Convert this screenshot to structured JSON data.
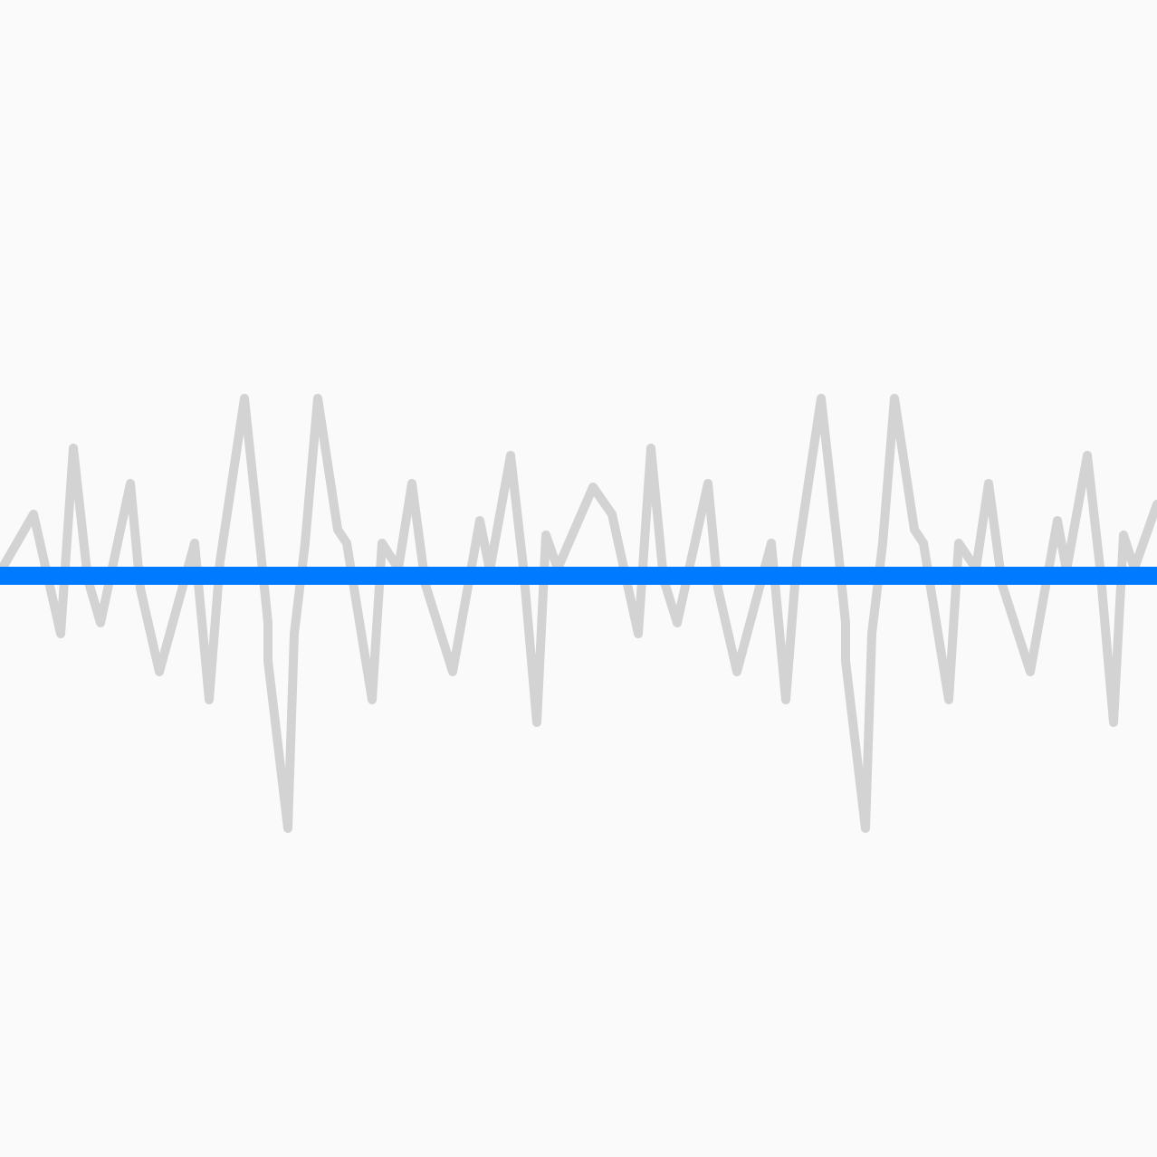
{
  "colors": {
    "background": "#fafafa",
    "waveform": "#d3d3d3",
    "playhead": "#007aff"
  },
  "waveform": {
    "icon": "audio-waveform-icon"
  }
}
